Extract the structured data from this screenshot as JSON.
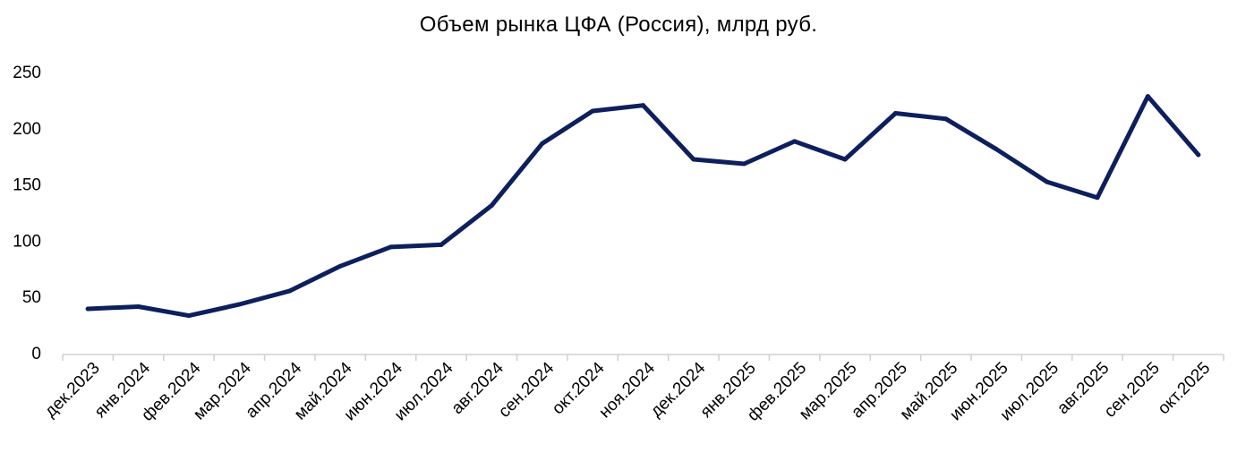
{
  "chart_data": {
    "type": "line",
    "title": "Объем рынка ЦФА (Россия), млрд руб.",
    "xlabel": "",
    "ylabel": "",
    "ylim": [
      0,
      250
    ],
    "yticks": [
      "0",
      "50",
      "100",
      "150",
      "200",
      "250"
    ],
    "categories": [
      "дек.2023",
      "янв.2024",
      "фев.2024",
      "мар.2024",
      "апр.2024",
      "май.2024",
      "июн.2024",
      "июл.2024",
      "авг.2024",
      "сен.2024",
      "окт.2024",
      "ноя.2024",
      "дек.2024",
      "янв.2025",
      "фев.2025",
      "мар.2025",
      "апр.2025",
      "май.2025",
      "июн.2025",
      "июл.2025",
      "авг.2025",
      "сен.2025",
      "окт.2025"
    ],
    "series": [
      {
        "values": [
          39,
          41,
          33,
          43,
          55,
          77,
          94,
          96,
          131,
          186,
          215,
          220,
          172,
          168,
          188,
          172,
          213,
          208,
          181,
          152,
          138,
          228,
          176
        ],
        "color": "#0d1f5c"
      }
    ],
    "grid": false,
    "legend": "none"
  }
}
